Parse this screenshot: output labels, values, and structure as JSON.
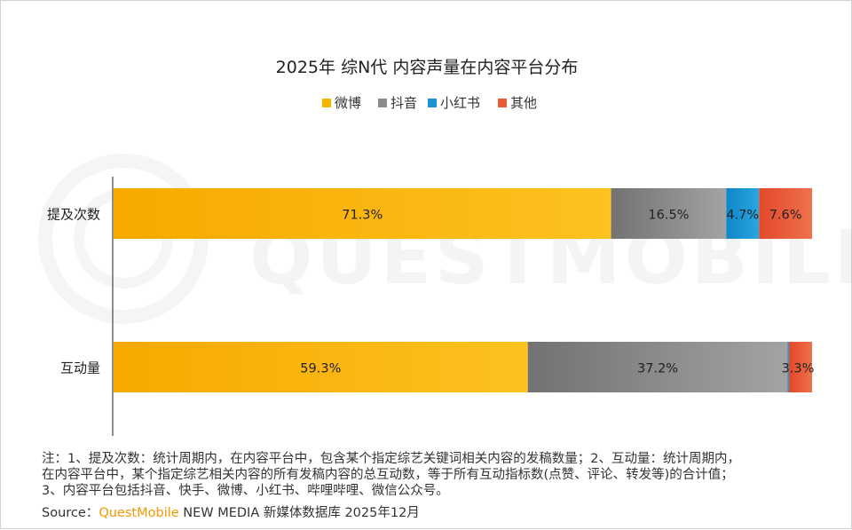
{
  "chart_data": {
    "type": "bar",
    "orientation": "horizontal",
    "stacked": true,
    "normalized": true,
    "title": "2025年 综N代 内容声量在内容平台分布",
    "legend_position": "top",
    "categories": [
      "提及次数",
      "互动量"
    ],
    "series": [
      {
        "name": "微博",
        "color": "#f9b300",
        "values": [
          71.3,
          59.3
        ],
        "labels": [
          "71.3%",
          "59.3%"
        ]
      },
      {
        "name": "抖音",
        "color": "#8c8c8c",
        "values": [
          16.5,
          37.2
        ],
        "labels": [
          "16.5%",
          "37.2%"
        ]
      },
      {
        "name": "小红书",
        "color": "#1b94d3",
        "values": [
          4.7,
          0.2
        ],
        "labels": [
          "4.7%",
          ""
        ]
      },
      {
        "name": "其他",
        "color": "#e85b34",
        "values": [
          7.6,
          3.3
        ],
        "labels": [
          "7.6%",
          "3.3%"
        ]
      }
    ],
    "xlim": [
      0,
      100
    ]
  },
  "notes": {
    "line1": "注：1、提及次数：统计周期内，在内容平台中，包含某个指定综艺关键词相关内容的发稿数量；2、互动量：统计周期内，",
    "line2": "在内容平台中，某个指定综艺相关内容的所有发稿内容的总互动数，等于所有互动指标数(点赞、评论、转发等)的合计值；",
    "line3": "3、内容平台包括抖音、快手、微博、小红书、哔哩哔哩、微信公众号。"
  },
  "source": {
    "label": "Source：",
    "brand": "QuestMobile",
    "text": " NEW MEDIA 新媒体数据库 2025年12月"
  },
  "watermark": "QUESTMOBILE"
}
